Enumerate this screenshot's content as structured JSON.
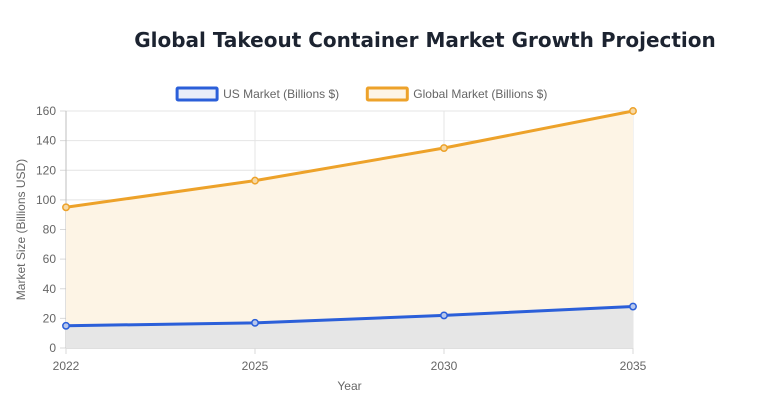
{
  "chart_data": {
    "type": "line",
    "title": "Global Takeout Container Market Growth Projection",
    "xlabel": "Year",
    "ylabel": "Market Size (Billions USD)",
    "x": [
      "2022",
      "2025",
      "2030",
      "2035"
    ],
    "ylim": [
      0,
      160
    ],
    "yticks": [
      0,
      20,
      40,
      60,
      80,
      100,
      120,
      140,
      160
    ],
    "grid": true,
    "legend": "top-center",
    "series": [
      {
        "name": "US Market (Billions $)",
        "values": [
          15,
          17,
          22,
          28
        ],
        "color": "#2b5fd9",
        "fill": "#e6e6e6"
      },
      {
        "name": "Global Market (Billions $)",
        "values": [
          95,
          113,
          135,
          160
        ],
        "color": "#eda22a",
        "fill": "#fdf4e5"
      }
    ]
  }
}
